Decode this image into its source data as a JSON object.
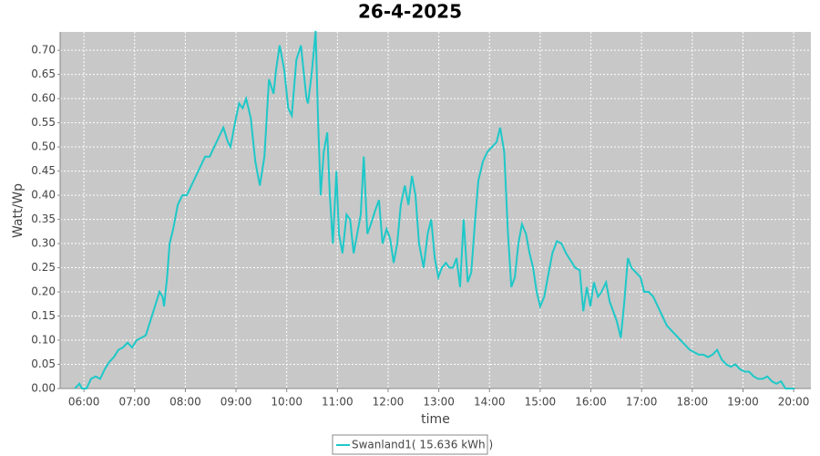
{
  "chart_data": {
    "type": "line",
    "title": "26-4-2025",
    "x_label": "time",
    "y_label": "Watt/Wp",
    "x": [
      5.82,
      5.91,
      5.96,
      6.05,
      6.14,
      6.23,
      6.32,
      6.41,
      6.5,
      6.59,
      6.68,
      6.77,
      6.86,
      6.95,
      7.04,
      7.13,
      7.22,
      7.31,
      7.4,
      7.49,
      7.55,
      7.58,
      7.64,
      7.69,
      7.76,
      7.85,
      7.94,
      8.03,
      8.12,
      8.21,
      8.3,
      8.39,
      8.48,
      8.57,
      8.66,
      8.75,
      8.84,
      8.89,
      8.98,
      9.06,
      9.13,
      9.2,
      9.29,
      9.38,
      9.47,
      9.56,
      9.65,
      9.74,
      9.79,
      9.86,
      9.95,
      10.03,
      10.1,
      10.19,
      10.28,
      10.33,
      10.39,
      10.42,
      10.49,
      10.57,
      10.62,
      10.67,
      10.73,
      10.8,
      10.85,
      10.91,
      10.98,
      11.03,
      11.1,
      11.18,
      11.25,
      11.32,
      11.39,
      11.46,
      11.52,
      11.59,
      11.66,
      11.75,
      11.82,
      11.89,
      11.97,
      12.04,
      12.11,
      12.18,
      12.25,
      12.33,
      12.4,
      12.47,
      12.54,
      12.61,
      12.7,
      12.78,
      12.85,
      12.92,
      12.99,
      13.06,
      13.14,
      13.21,
      13.28,
      13.35,
      13.42,
      13.49,
      13.57,
      13.64,
      13.71,
      13.78,
      13.87,
      13.96,
      14.05,
      14.14,
      14.21,
      14.29,
      14.36,
      14.43,
      14.5,
      14.57,
      14.64,
      14.72,
      14.79,
      14.86,
      14.93,
      15.0,
      15.08,
      15.15,
      15.24,
      15.33,
      15.42,
      15.51,
      15.6,
      15.69,
      15.78,
      15.85,
      15.92,
      15.99,
      16.06,
      16.14,
      16.21,
      16.3,
      16.37,
      16.44,
      16.51,
      16.59,
      16.66,
      16.73,
      16.8,
      16.89,
      16.98,
      17.05,
      17.14,
      17.23,
      17.32,
      17.41,
      17.5,
      17.59,
      17.68,
      17.77,
      17.86,
      17.95,
      18.04,
      18.13,
      18.22,
      18.31,
      18.4,
      18.49,
      18.58,
      18.67,
      18.76,
      18.85,
      18.94,
      19.03,
      19.12,
      19.21,
      19.3,
      19.39,
      19.48,
      19.57,
      19.66,
      19.75,
      19.84,
      19.93,
      20.02
    ],
    "series": [
      {
        "name": "Swanland1( 15.636 kWh )",
        "color": "#1ec8c8",
        "values": [
          0,
          0.01,
          0,
          0,
          0.02,
          0.025,
          0.02,
          0.04,
          0.055,
          0.065,
          0.08,
          0.085,
          0.095,
          0.085,
          0.1,
          0.105,
          0.11,
          0.14,
          0.17,
          0.2,
          0.19,
          0.17,
          0.23,
          0.3,
          0.33,
          0.38,
          0.4,
          0.4,
          0.42,
          0.44,
          0.46,
          0.48,
          0.48,
          0.5,
          0.52,
          0.54,
          0.51,
          0.5,
          0.55,
          0.59,
          0.58,
          0.6,
          0.56,
          0.47,
          0.42,
          0.48,
          0.64,
          0.61,
          0.66,
          0.71,
          0.66,
          0.58,
          0.565,
          0.68,
          0.71,
          0.66,
          0.6,
          0.59,
          0.65,
          0.74,
          0.55,
          0.4,
          0.49,
          0.53,
          0.4,
          0.3,
          0.45,
          0.32,
          0.28,
          0.36,
          0.35,
          0.28,
          0.32,
          0.36,
          0.48,
          0.32,
          0.34,
          0.37,
          0.39,
          0.3,
          0.33,
          0.31,
          0.26,
          0.3,
          0.38,
          0.42,
          0.38,
          0.44,
          0.4,
          0.3,
          0.25,
          0.32,
          0.35,
          0.27,
          0.23,
          0.25,
          0.26,
          0.25,
          0.25,
          0.27,
          0.21,
          0.35,
          0.22,
          0.24,
          0.34,
          0.43,
          0.47,
          0.49,
          0.5,
          0.51,
          0.54,
          0.49,
          0.33,
          0.21,
          0.23,
          0.3,
          0.34,
          0.32,
          0.28,
          0.25,
          0.2,
          0.17,
          0.19,
          0.23,
          0.28,
          0.305,
          0.3,
          0.28,
          0.265,
          0.25,
          0.245,
          0.16,
          0.21,
          0.17,
          0.22,
          0.19,
          0.2,
          0.22,
          0.18,
          0.16,
          0.14,
          0.105,
          0.18,
          0.27,
          0.25,
          0.24,
          0.23,
          0.2,
          0.2,
          0.19,
          0.17,
          0.15,
          0.13,
          0.12,
          0.11,
          0.1,
          0.09,
          0.08,
          0.075,
          0.07,
          0.07,
          0.065,
          0.07,
          0.08,
          0.06,
          0.05,
          0.045,
          0.05,
          0.04,
          0.035,
          0.035,
          0.025,
          0.02,
          0.02,
          0.025,
          0.015,
          0.01,
          0.015,
          0,
          0,
          0
        ]
      }
    ],
    "xlim": [
      5.53,
      20.34
    ],
    "ylim": [
      0,
      0.738
    ],
    "xticks": [
      {
        "value": 6,
        "label": "06:00"
      },
      {
        "value": 7,
        "label": "07:00"
      },
      {
        "value": 8,
        "label": "08:00"
      },
      {
        "value": 9,
        "label": "09:00"
      },
      {
        "value": 10,
        "label": "10:00"
      },
      {
        "value": 11,
        "label": "11:00"
      },
      {
        "value": 12,
        "label": "12:00"
      },
      {
        "value": 13,
        "label": "13:00"
      },
      {
        "value": 14,
        "label": "14:00"
      },
      {
        "value": 15,
        "label": "15:00"
      },
      {
        "value": 16,
        "label": "16:00"
      },
      {
        "value": 17,
        "label": "17:00"
      },
      {
        "value": 18,
        "label": "18:00"
      },
      {
        "value": 19,
        "label": "19:00"
      },
      {
        "value": 20,
        "label": "20:00"
      }
    ],
    "yticks": [
      {
        "value": 0,
        "label": "0.00"
      },
      {
        "value": 0.05,
        "label": "0.05"
      },
      {
        "value": 0.1,
        "label": "0.10"
      },
      {
        "value": 0.15,
        "label": "0.15"
      },
      {
        "value": 0.2,
        "label": "0.20"
      },
      {
        "value": 0.25,
        "label": "0.25"
      },
      {
        "value": 0.3,
        "label": "0.30"
      },
      {
        "value": 0.35,
        "label": "0.35"
      },
      {
        "value": 0.4,
        "label": "0.40"
      },
      {
        "value": 0.45,
        "label": "0.45"
      },
      {
        "value": 0.5,
        "label": "0.50"
      },
      {
        "value": 0.55,
        "label": "0.55"
      },
      {
        "value": 0.6,
        "label": "0.60"
      },
      {
        "value": 0.65,
        "label": "0.65"
      },
      {
        "value": 0.7,
        "label": "0.70"
      }
    ],
    "grid": true
  }
}
